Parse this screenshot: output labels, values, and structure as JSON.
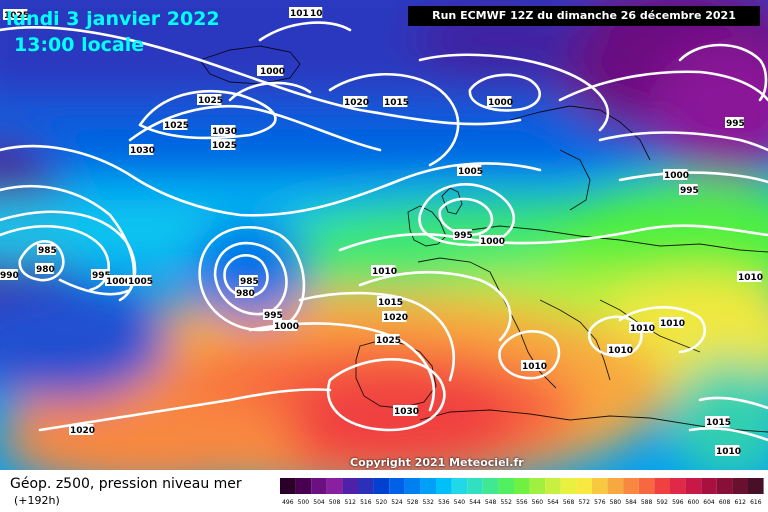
{
  "header": {
    "date": "lundi 3 janvier 2022",
    "time": "13:00 locale",
    "run": "Run ECMWF 12Z du dimanche 26 décembre 2021"
  },
  "footer": {
    "field": "Géop. z500, pression niveau mer",
    "lead": "(+192h)",
    "copyright": "Copyright 2021 Meteociel.fr"
  },
  "scale": {
    "values": [
      "496",
      "500",
      "504",
      "508",
      "512",
      "516",
      "520",
      "524",
      "528",
      "532",
      "536",
      "540",
      "544",
      "548",
      "552",
      "556",
      "560",
      "564",
      "568",
      "572",
      "576",
      "580",
      "584",
      "588",
      "592",
      "596",
      "600",
      "604",
      "608",
      "612",
      "616"
    ],
    "colors": [
      "#2a0028",
      "#4a0050",
      "#6a1080",
      "#8a20a0",
      "#5020a8",
      "#2a30b8",
      "#0040d0",
      "#0060e8",
      "#0080f0",
      "#00a0f8",
      "#00c0f8",
      "#20d8e8",
      "#30e0c0",
      "#40e890",
      "#50f060",
      "#70f040",
      "#a0f040",
      "#c8f040",
      "#e8f040",
      "#f8e840",
      "#f8c840",
      "#f8a840",
      "#f88840",
      "#f86840",
      "#f04040",
      "#e02848",
      "#c81848",
      "#a81040",
      "#881038",
      "#681030",
      "#481028"
    ]
  },
  "isobars": [
    "1025",
    "1010",
    "10",
    "1030",
    "1025",
    "1020",
    "1015",
    "1000",
    "995",
    "1025",
    "1030",
    "1030",
    "1025",
    "1005",
    "1000",
    "995",
    "985",
    "980",
    "990",
    "995",
    "1000",
    "1005",
    "985",
    "980",
    "995",
    "1000",
    "995",
    "1000",
    "1010",
    "1015",
    "1020",
    "1025",
    "1010",
    "1010",
    "1010",
    "1010",
    "1030",
    "1010",
    "1015",
    "1010",
    "1020",
    "1000"
  ]
}
